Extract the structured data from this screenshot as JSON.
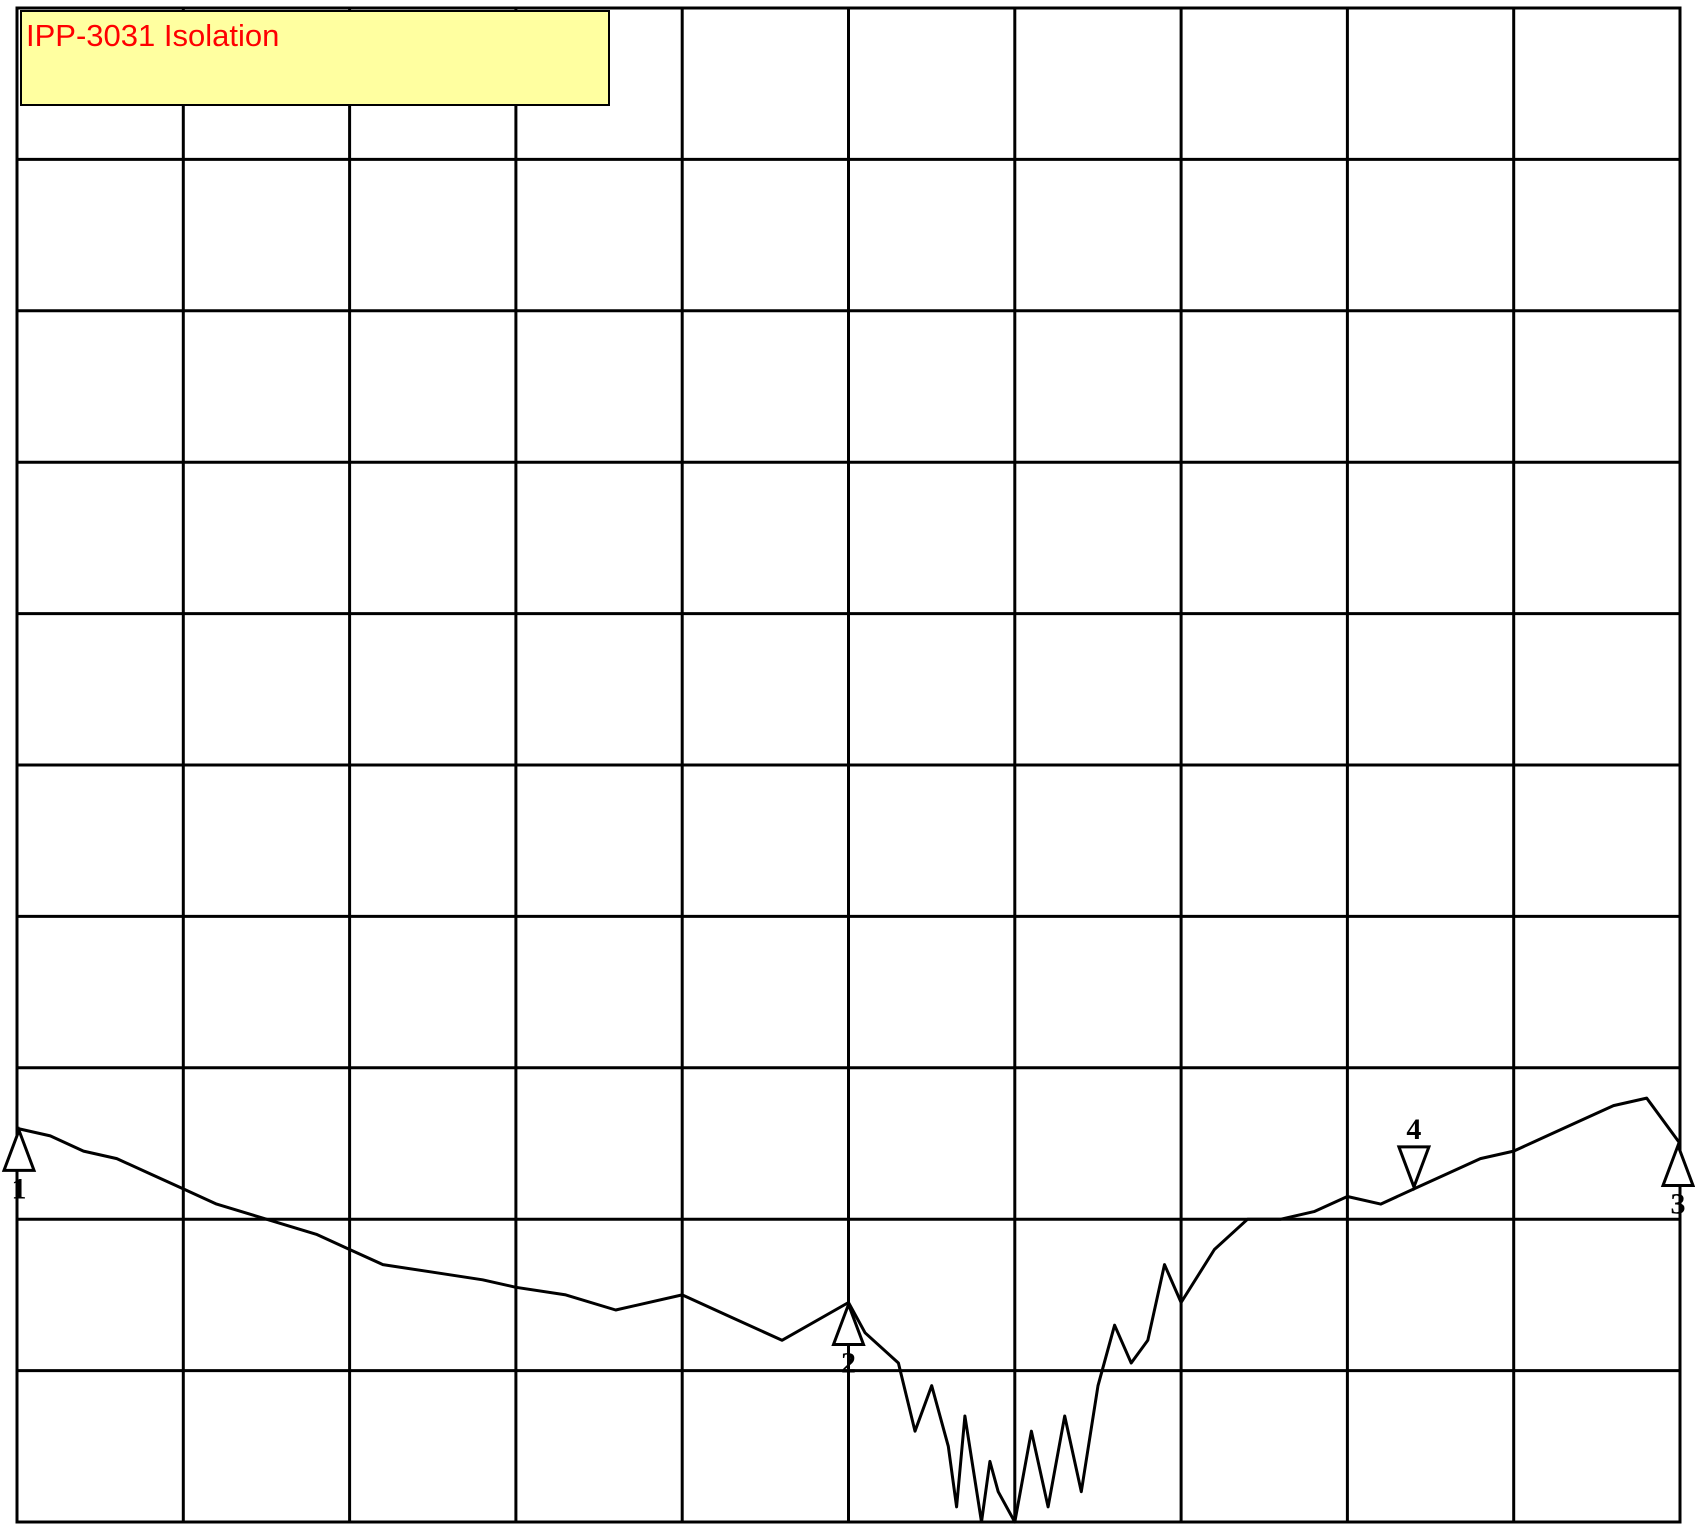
{
  "chart_data": {
    "type": "line",
    "title": "IPP-3031 Isolation",
    "xlabel": "",
    "ylabel": "",
    "grid": true,
    "x_divisions": 10,
    "y_divisions": 10,
    "xlim": [
      0,
      10
    ],
    "ylim": [
      -10,
      0
    ],
    "series": [
      {
        "values_x": [
          0.0,
          0.2,
          0.4,
          0.6,
          0.8,
          1.0,
          1.2,
          1.5,
          1.8,
          2.0,
          2.2,
          2.5,
          2.8,
          3.0,
          3.3,
          3.6,
          4.0,
          4.3,
          4.6,
          5.0,
          5.1,
          5.3,
          5.4,
          5.5,
          5.6,
          5.65,
          5.7,
          5.8,
          5.85,
          5.9,
          6.0,
          6.1,
          6.2,
          6.3,
          6.4,
          6.5,
          6.6,
          6.7,
          6.8,
          6.9,
          7.0,
          7.2,
          7.4,
          7.6,
          7.8,
          8.0,
          8.2,
          8.4,
          8.6,
          8.8,
          9.0,
          9.2,
          9.4,
          9.6,
          9.8,
          10.0
        ],
        "values_y": [
          -7.4,
          -7.45,
          -7.55,
          -7.6,
          -7.7,
          -7.8,
          -7.9,
          -8.0,
          -8.1,
          -8.2,
          -8.3,
          -8.35,
          -8.4,
          -8.45,
          -8.5,
          -8.6,
          -8.5,
          -8.65,
          -8.8,
          -8.55,
          -8.75,
          -8.95,
          -9.4,
          -9.1,
          -9.5,
          -9.9,
          -9.3,
          -10.0,
          -9.6,
          -9.8,
          -10.0,
          -9.4,
          -9.9,
          -9.3,
          -9.8,
          -9.1,
          -8.7,
          -8.95,
          -8.8,
          -8.3,
          -8.55,
          -8.2,
          -8.0,
          -8.0,
          -7.95,
          -7.85,
          -7.9,
          -7.8,
          -7.7,
          -7.6,
          -7.55,
          -7.45,
          -7.35,
          -7.25,
          -7.2,
          -7.5
        ]
      }
    ],
    "markers": [
      {
        "label": "1",
        "x": 0.0
      },
      {
        "label": "2",
        "x": 5.0
      },
      {
        "label": "3",
        "x": 10.0
      },
      {
        "label": "4",
        "x": 8.4
      }
    ],
    "colors": {
      "background": "#ffffff",
      "grid": "#000000",
      "trace": "#000000",
      "title_box": "#ffffa0",
      "title_text": "#ff0000"
    }
  }
}
